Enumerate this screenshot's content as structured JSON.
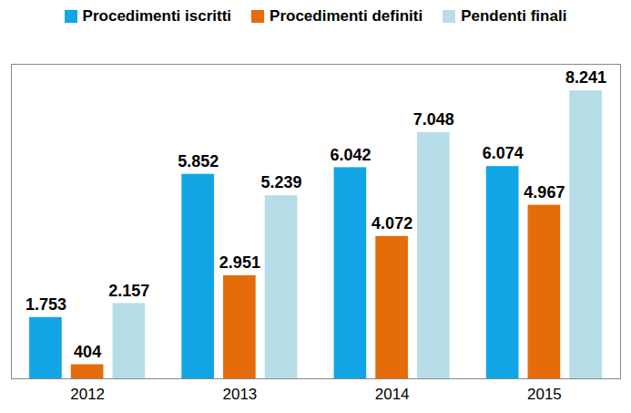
{
  "chart_data": {
    "type": "bar",
    "categories": [
      "2012",
      "2013",
      "2014",
      "2015"
    ],
    "series": [
      {
        "name": "Procedimenti iscritti",
        "color": "#12A5E6",
        "values": [
          1753,
          5852,
          6042,
          6074
        ],
        "value_labels": [
          "1.753",
          "5.852",
          "6.042",
          "6.074"
        ]
      },
      {
        "name": "Procedimenti definiti",
        "color": "#E46C0A",
        "values": [
          404,
          2951,
          4072,
          4967
        ],
        "value_labels": [
          "404",
          "2.951",
          "4.072",
          "4.967"
        ]
      },
      {
        "name": "Pendenti finali",
        "color": "#B7DEE8",
        "values": [
          2157,
          5239,
          7048,
          8241
        ],
        "value_labels": [
          "2.157",
          "5.239",
          "7.048",
          "8.241"
        ]
      }
    ],
    "ylim": [
      0,
      9000
    ],
    "legend": "top",
    "data_labels": true,
    "tick_labels": "x",
    "grid": false
  }
}
